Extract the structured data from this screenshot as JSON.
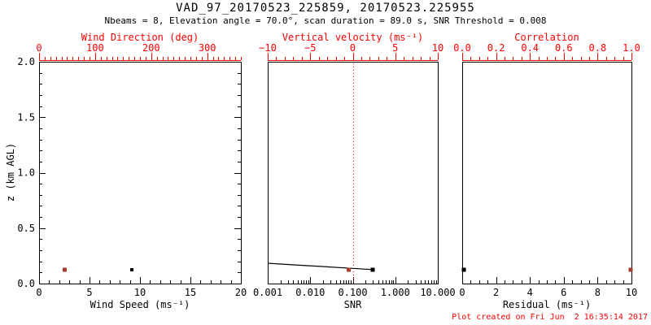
{
  "header": {
    "title": "VAD_97_20170523_225859, 20170523.225955",
    "subtitle": "Nbeams = 8, Elevation angle = 70.0°, scan duration = 89.0 s, SNR Threshold = 0.008"
  },
  "footer": {
    "created": "Plot created on Fri Jun  2 16:35:14 2017"
  },
  "colors": {
    "black": "#000000",
    "red": "#ff0000",
    "marker_red": "#a63c2e",
    "background": "#ffffff"
  },
  "y_axis": {
    "title": "z (km AGL)",
    "min": 0,
    "max": 2,
    "minor_step": 0.1,
    "major": [
      {
        "v": 0.0,
        "label": "0.0"
      },
      {
        "v": 0.5,
        "label": "0.5"
      },
      {
        "v": 1.0,
        "label": "1.0"
      },
      {
        "v": 1.5,
        "label": "1.5"
      },
      {
        "v": 2.0,
        "label": "2.0"
      }
    ]
  },
  "chart_data": [
    {
      "id": "wind-panel",
      "type": "scatter",
      "bottom_axis": {
        "title": "Wind Speed (ms⁻¹)",
        "scale": "linear",
        "min": 0,
        "max": 20,
        "minor_step": 1,
        "major": [
          {
            "v": 0,
            "label": "0"
          },
          {
            "v": 5,
            "label": "5"
          },
          {
            "v": 10,
            "label": "10"
          },
          {
            "v": 15,
            "label": "15"
          },
          {
            "v": 20,
            "label": "20"
          }
        ]
      },
      "top_axis": {
        "title": "Wind Direction (deg)",
        "scale": "linear",
        "min": 0,
        "max": 360,
        "minor_step": 10,
        "major": [
          {
            "v": 0,
            "label": "0"
          },
          {
            "v": 100,
            "label": "100"
          },
          {
            "v": 200,
            "label": "200"
          },
          {
            "v": 300,
            "label": "300"
          }
        ]
      },
      "series": [
        {
          "name": "wind-speed",
          "axis": "bottom",
          "marker": "square",
          "size": 4,
          "color": "black",
          "points": [
            [
              9.2,
              0.126
            ]
          ]
        },
        {
          "name": "wind-direction",
          "axis": "top",
          "marker": "square",
          "size": 5,
          "color": "marker_red",
          "points": [
            [
              46,
              0.126
            ]
          ]
        }
      ]
    },
    {
      "id": "snr-panel",
      "type": "line",
      "bottom_axis": {
        "title": "SNR",
        "scale": "log",
        "min": 0.001,
        "max": 10,
        "major": [
          {
            "v": 0.001,
            "label": "0.001"
          },
          {
            "v": 0.01,
            "label": "0.010"
          },
          {
            "v": 0.1,
            "label": "0.100"
          },
          {
            "v": 1,
            "label": "1.000"
          },
          {
            "v": 10,
            "label": "10.000"
          }
        ]
      },
      "top_axis": {
        "title": "Vertical velocity (ms⁻¹)",
        "scale": "linear",
        "min": -10,
        "max": 10,
        "minor_step": 1,
        "major": [
          {
            "v": -10,
            "label": "−10"
          },
          {
            "v": -5,
            "label": "−5"
          },
          {
            "v": 0,
            "label": "0"
          },
          {
            "v": 5,
            "label": "5"
          },
          {
            "v": 10,
            "label": "10"
          }
        ]
      },
      "refline": {
        "axis": "top",
        "value": 0,
        "color": "red",
        "style": "dotted"
      },
      "series": [
        {
          "name": "snr-profile",
          "axis": "bottom",
          "type": "line",
          "marker": "square",
          "size": 5,
          "marker_on": "last",
          "color": "black",
          "points": [
            [
              0.001,
              0.183
            ],
            [
              0.295,
              0.126
            ]
          ]
        },
        {
          "name": "vertical-velocity",
          "axis": "top",
          "marker": "square",
          "size": 5,
          "color": "marker_red",
          "points": [
            [
              -0.5,
              0.126
            ]
          ]
        }
      ]
    },
    {
      "id": "residual-panel",
      "type": "scatter",
      "bottom_axis": {
        "title": "Residual (ms⁻¹)",
        "scale": "linear",
        "min": 0,
        "max": 10,
        "minor_step": 0.5,
        "major": [
          {
            "v": 0,
            "label": "0"
          },
          {
            "v": 2,
            "label": "2"
          },
          {
            "v": 4,
            "label": "4"
          },
          {
            "v": 6,
            "label": "6"
          },
          {
            "v": 8,
            "label": "8"
          },
          {
            "v": 10,
            "label": "10"
          }
        ]
      },
      "top_axis": {
        "title": "Correlation",
        "scale": "linear",
        "min": 0,
        "max": 1,
        "minor_step": 0.05,
        "major": [
          {
            "v": 0.0,
            "label": "0.0"
          },
          {
            "v": 0.2,
            "label": "0.2"
          },
          {
            "v": 0.4,
            "label": "0.4"
          },
          {
            "v": 0.6,
            "label": "0.6"
          },
          {
            "v": 0.8,
            "label": "0.8"
          },
          {
            "v": 1.0,
            "label": "1.0"
          }
        ]
      },
      "series": [
        {
          "name": "residual",
          "axis": "bottom",
          "marker": "square",
          "size": 5,
          "color": "black",
          "points": [
            [
              0.1,
              0.126
            ]
          ]
        },
        {
          "name": "correlation",
          "axis": "top",
          "marker": "square",
          "size": 5,
          "color": "marker_red",
          "points": [
            [
              0.995,
              0.126
            ]
          ]
        }
      ]
    }
  ]
}
